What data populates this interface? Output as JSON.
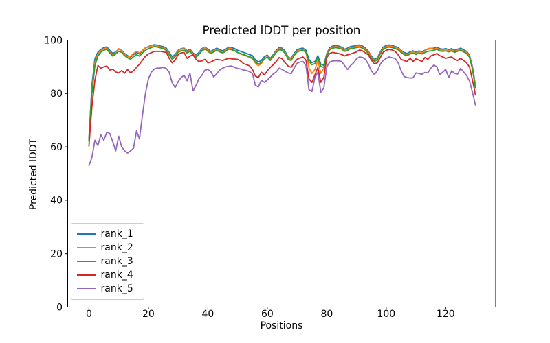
{
  "figure": {
    "title": "Predicted lDDT per position"
  },
  "chart_data": {
    "type": "line",
    "title": "Predicted lDDT per position",
    "xlabel": "Positions",
    "ylabel": "Predicted lDDT",
    "xlim": [
      -7.15,
      136.8
    ],
    "ylim": [
      0,
      100
    ],
    "x_ticks": [
      0,
      20,
      40,
      60,
      80,
      100,
      120
    ],
    "y_ticks": [
      0,
      20,
      40,
      60,
      80,
      100
    ],
    "grid": false,
    "legend_position": "lower-left",
    "x_start": 0,
    "x_step": 1,
    "series": [
      {
        "name": "rank_1",
        "color": "#1f77b4",
        "values": [
          63.0,
          83.0,
          93.0,
          95.5,
          96.5,
          97.2,
          97.5,
          96.2,
          95.0,
          95.6,
          96.6,
          96.2,
          95.0,
          94.2,
          93.6,
          94.6,
          95.4,
          94.8,
          96.0,
          97.0,
          97.6,
          98.0,
          98.3,
          98.1,
          97.8,
          97.6,
          97.0,
          95.4,
          93.8,
          94.6,
          96.2,
          96.8,
          97.0,
          96.0,
          96.6,
          95.2,
          94.4,
          95.4,
          96.8,
          97.4,
          96.6,
          95.8,
          96.4,
          97.0,
          96.4,
          96.0,
          96.6,
          97.4,
          97.2,
          96.8,
          96.2,
          95.8,
          95.4,
          95.0,
          94.6,
          94.2,
          92.6,
          91.8,
          92.4,
          93.8,
          94.4,
          93.2,
          94.6,
          96.2,
          97.2,
          97.0,
          95.8,
          93.6,
          93.2,
          95.0,
          96.4,
          96.8,
          97.0,
          96.2,
          92.8,
          91.6,
          92.0,
          94.2,
          91.0,
          90.6,
          95.0,
          97.2,
          97.8,
          98.0,
          97.8,
          97.4,
          96.6,
          97.0,
          97.6,
          97.8,
          98.0,
          98.2,
          97.8,
          97.0,
          95.8,
          94.0,
          92.8,
          93.4,
          95.6,
          97.4,
          98.0,
          98.2,
          98.0,
          97.6,
          97.2,
          96.2,
          95.4,
          95.0,
          95.6,
          96.0,
          95.4,
          96.0,
          95.6,
          96.2,
          96.6,
          96.8,
          97.0,
          97.4,
          96.8,
          96.6,
          96.8,
          96.4,
          96.8,
          96.2,
          96.6,
          97.0,
          96.4,
          95.8,
          94.4,
          90.0,
          83.0
        ]
      },
      {
        "name": "rank_2",
        "color": "#ff7f0e",
        "values": [
          62.0,
          81.0,
          91.5,
          94.8,
          96.0,
          96.8,
          97.0,
          95.6,
          94.4,
          95.2,
          96.8,
          96.0,
          94.6,
          93.8,
          93.9,
          95.0,
          95.8,
          95.2,
          96.2,
          97.2,
          97.4,
          97.8,
          98.0,
          97.8,
          97.5,
          97.2,
          96.6,
          94.8,
          93.2,
          94.2,
          96.0,
          96.6,
          96.8,
          95.6,
          96.2,
          94.8,
          94.0,
          95.0,
          96.4,
          97.2,
          96.2,
          95.4,
          96.0,
          96.6,
          96.0,
          95.6,
          96.2,
          97.0,
          96.8,
          96.2,
          95.4,
          94.8,
          94.4,
          94.0,
          93.6,
          93.0,
          91.4,
          90.4,
          91.2,
          93.0,
          93.8,
          92.6,
          94.2,
          95.8,
          96.8,
          96.6,
          95.4,
          93.2,
          92.8,
          94.6,
          96.0,
          96.4,
          96.6,
          95.4,
          89.5,
          87.5,
          89.0,
          92.5,
          87.5,
          89.5,
          94.4,
          96.8,
          97.4,
          97.6,
          97.4,
          97.0,
          96.2,
          96.6,
          97.2,
          97.4,
          97.6,
          97.8,
          97.4,
          96.6,
          95.4,
          93.6,
          92.4,
          93.0,
          95.2,
          97.0,
          97.6,
          97.8,
          97.6,
          97.2,
          96.8,
          95.8,
          95.0,
          94.6,
          95.2,
          95.8,
          95.0,
          95.8,
          95.2,
          96.0,
          96.8,
          97.0,
          96.6,
          97.0,
          96.4,
          96.2,
          96.6,
          96.0,
          96.4,
          95.8,
          96.2,
          96.6,
          96.0,
          95.4,
          94.0,
          89.5,
          82.5
        ]
      },
      {
        "name": "rank_3",
        "color": "#2ca02c",
        "values": [
          62.5,
          80.0,
          90.5,
          94.0,
          95.5,
          96.2,
          96.6,
          95.2,
          94.0,
          94.8,
          95.8,
          95.4,
          94.2,
          93.4,
          92.8,
          93.8,
          94.6,
          94.0,
          95.2,
          96.2,
          96.8,
          97.2,
          97.6,
          97.4,
          97.1,
          96.8,
          96.2,
          94.4,
          92.8,
          93.8,
          95.4,
          96.0,
          96.2,
          95.2,
          95.8,
          94.4,
          93.6,
          94.6,
          96.0,
          96.6,
          95.8,
          95.0,
          95.6,
          96.2,
          95.6,
          95.2,
          95.8,
          96.6,
          96.4,
          96.0,
          95.4,
          95.0,
          94.6,
          94.2,
          93.8,
          93.4,
          91.8,
          91.0,
          91.6,
          93.0,
          93.6,
          92.4,
          93.8,
          95.4,
          96.4,
          96.2,
          95.0,
          92.8,
          92.4,
          94.2,
          95.6,
          96.0,
          96.2,
          95.4,
          92.0,
          90.8,
          91.2,
          93.4,
          90.2,
          89.8,
          94.2,
          96.4,
          97.0,
          97.2,
          97.0,
          96.6,
          95.8,
          96.2,
          96.8,
          97.0,
          97.2,
          97.4,
          97.0,
          96.2,
          95.0,
          93.2,
          92.0,
          92.6,
          94.8,
          96.6,
          97.2,
          97.4,
          97.2,
          96.8,
          96.4,
          95.4,
          94.6,
          94.2,
          94.8,
          95.2,
          94.6,
          95.2,
          94.8,
          95.4,
          95.8,
          96.0,
          96.2,
          96.6,
          96.0,
          95.8,
          96.0,
          95.6,
          96.0,
          95.4,
          95.8,
          96.2,
          95.6,
          95.0,
          93.6,
          89.0,
          82.0
        ]
      },
      {
        "name": "rank_4",
        "color": "#d62728",
        "values": [
          60.3,
          75.0,
          85.0,
          90.5,
          89.5,
          90.0,
          90.3,
          88.8,
          89.1,
          88.1,
          87.7,
          88.6,
          87.6,
          89.0,
          87.7,
          88.5,
          89.8,
          91.0,
          92.5,
          94.0,
          94.8,
          95.3,
          95.8,
          95.8,
          95.8,
          95.6,
          95.4,
          93.2,
          91.5,
          92.5,
          94.6,
          95.2,
          95.4,
          93.2,
          94.0,
          94.5,
          92.8,
          92.0,
          92.2,
          92.8,
          91.5,
          91.8,
          92.4,
          92.8,
          92.6,
          92.4,
          92.8,
          93.2,
          93.0,
          92.9,
          92.8,
          92.2,
          91.2,
          90.8,
          90.4,
          89.0,
          86.5,
          86.0,
          88.0,
          87.0,
          88.5,
          89.8,
          90.8,
          92.0,
          93.5,
          93.0,
          91.5,
          90.3,
          89.8,
          91.5,
          92.8,
          93.3,
          93.7,
          92.5,
          85.5,
          84.2,
          87.0,
          89.8,
          84.2,
          86.0,
          93.5,
          95.0,
          95.4,
          95.2,
          95.0,
          94.6,
          94.1,
          94.5,
          94.8,
          95.2,
          95.6,
          96.3,
          96.0,
          95.2,
          94.5,
          92.5,
          91.1,
          91.5,
          93.5,
          95.5,
          96.2,
          96.5,
          96.3,
          95.8,
          94.5,
          92.8,
          92.4,
          92.0,
          93.2,
          92.0,
          93.0,
          92.5,
          92.0,
          93.5,
          92.8,
          94.1,
          94.5,
          95.0,
          94.2,
          93.7,
          93.2,
          93.5,
          93.7,
          92.8,
          92.4,
          93.2,
          92.4,
          91.5,
          90.0,
          85.0,
          79.5
        ]
      },
      {
        "name": "rank_5",
        "color": "#9467bd",
        "values": [
          53.0,
          56.0,
          62.5,
          60.5,
          64.5,
          62.5,
          65.5,
          65.0,
          62.0,
          58.5,
          64.0,
          60.0,
          58.5,
          57.7,
          58.5,
          59.5,
          66.0,
          63.0,
          72.0,
          80.0,
          85.5,
          88.0,
          89.2,
          89.5,
          89.6,
          89.8,
          89.4,
          88.0,
          84.0,
          82.2,
          84.5,
          86.0,
          86.8,
          84.8,
          87.6,
          81.0,
          83.0,
          85.5,
          86.8,
          88.8,
          89.0,
          88.2,
          86.2,
          87.5,
          88.8,
          89.5,
          90.0,
          90.2,
          90.3,
          89.8,
          89.4,
          89.2,
          88.8,
          88.6,
          88.2,
          87.5,
          83.0,
          82.5,
          85.0,
          84.2,
          85.1,
          86.2,
          87.3,
          88.1,
          89.5,
          89.0,
          88.3,
          87.7,
          87.4,
          89.5,
          91.3,
          91.8,
          92.0,
          90.5,
          81.5,
          80.8,
          86.0,
          88.0,
          80.5,
          82.0,
          90.0,
          91.8,
          92.2,
          92.3,
          92.2,
          92.0,
          90.5,
          89.0,
          90.5,
          91.5,
          93.0,
          93.7,
          93.5,
          92.8,
          91.0,
          88.5,
          87.1,
          88.5,
          91.0,
          92.4,
          93.2,
          93.7,
          93.4,
          93.2,
          91.5,
          88.5,
          86.4,
          86.0,
          85.8,
          85.9,
          87.7,
          87.5,
          87.2,
          87.9,
          87.7,
          89.5,
          90.7,
          90.0,
          87.0,
          88.0,
          89.0,
          86.0,
          88.5,
          87.5,
          87.3,
          89.4,
          88.1,
          86.8,
          84.7,
          80.4,
          75.7
        ]
      }
    ]
  },
  "style": {
    "spine_color": "#000000",
    "tick_label_color": "#000000",
    "legend_border_color": "#cccccc",
    "background_color": "#ffffff"
  }
}
